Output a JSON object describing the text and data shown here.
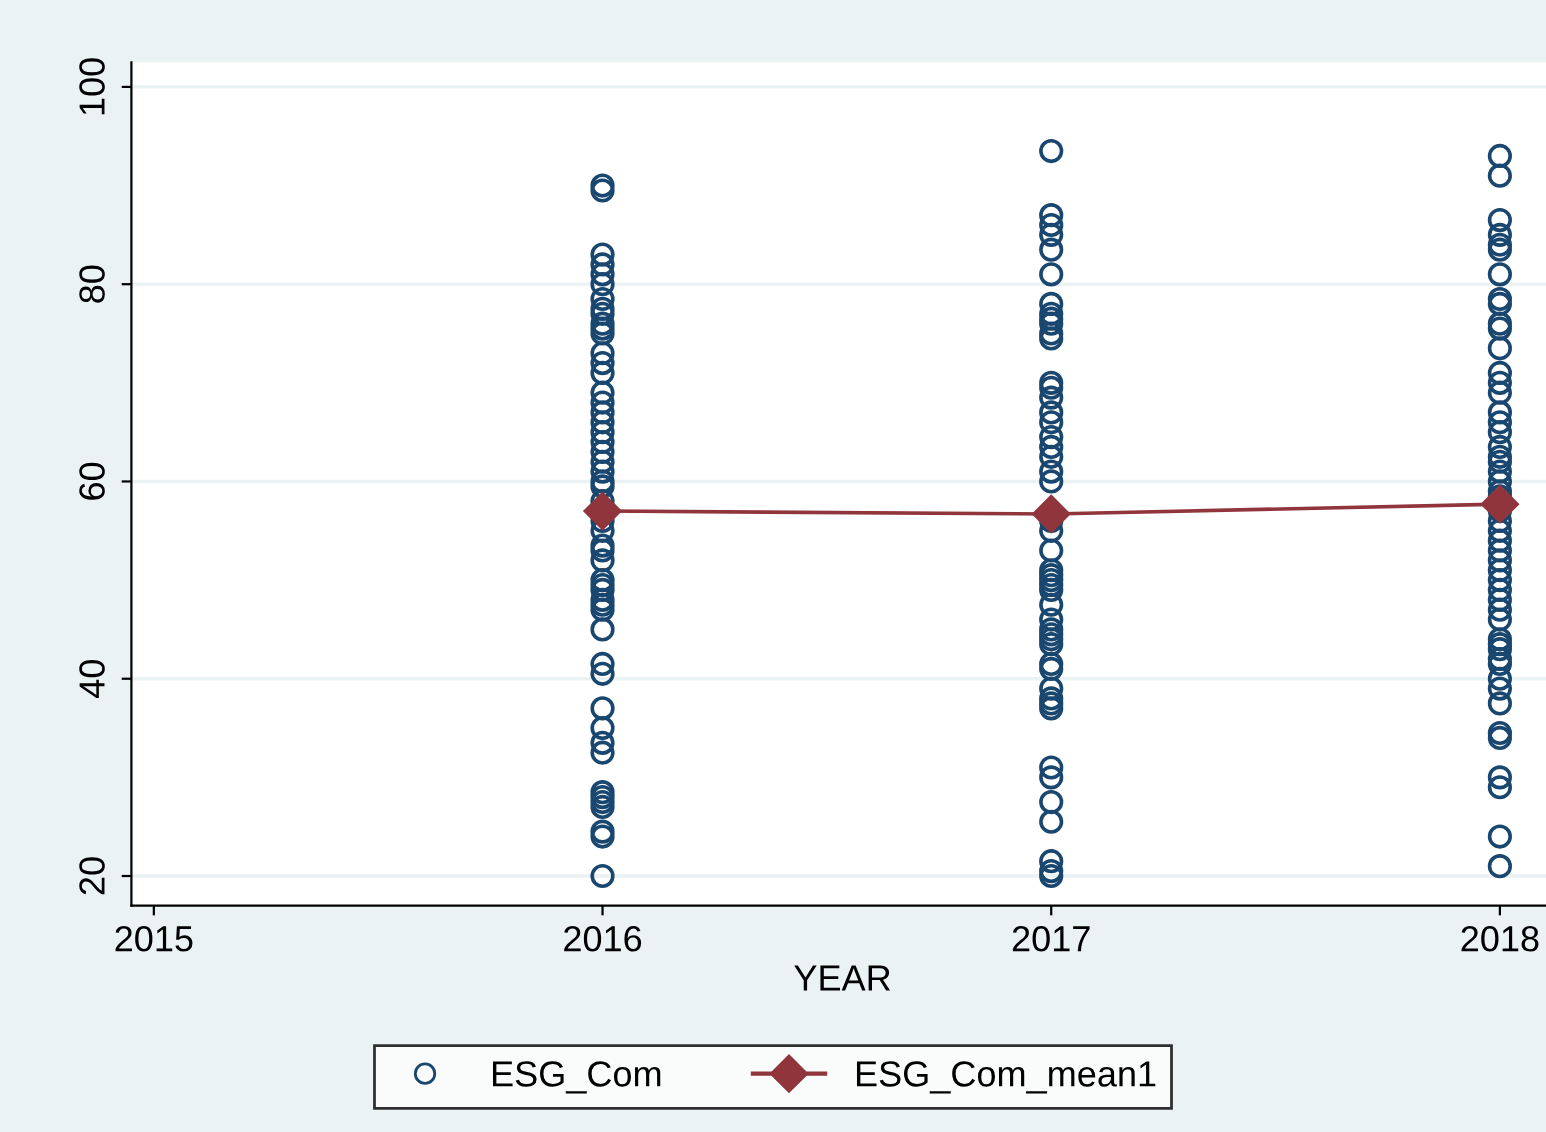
{
  "chart_data": {
    "type": "scatter",
    "xlabel": "YEAR",
    "xlim": [
      2014.95,
      2018.12
    ],
    "xticks": [
      2015,
      2016,
      2017,
      2018
    ],
    "ylim": [
      17,
      102.5
    ],
    "yticks": [
      20,
      40,
      60,
      80,
      100
    ],
    "grid": "y",
    "legend": "bottom",
    "series": [
      {
        "name": "ESG_Com",
        "marker": "circle",
        "color": "#1a476f",
        "x": [
          2016,
          2016,
          2016,
          2016,
          2016,
          2016,
          2016,
          2016,
          2016,
          2016,
          2016,
          2016,
          2016,
          2016,
          2016,
          2016,
          2016,
          2016,
          2016,
          2016,
          2016,
          2016,
          2016,
          2016,
          2016,
          2016,
          2016,
          2016,
          2016,
          2016,
          2016,
          2016,
          2016,
          2016,
          2016,
          2016,
          2016,
          2016,
          2016,
          2016,
          2016,
          2016,
          2016,
          2016,
          2016,
          2016,
          2016,
          2016,
          2016,
          2016,
          2016,
          2016,
          2017,
          2017,
          2017,
          2017,
          2017,
          2017,
          2017,
          2017,
          2017,
          2017,
          2017,
          2017,
          2017,
          2017,
          2017,
          2017,
          2017,
          2017,
          2017,
          2017,
          2017,
          2017,
          2017,
          2017,
          2017,
          2017,
          2017,
          2017,
          2017,
          2017,
          2017,
          2017,
          2017,
          2017,
          2017,
          2017,
          2017,
          2017,
          2017,
          2017,
          2017,
          2017,
          2017,
          2017,
          2017,
          2017,
          2017,
          2017,
          2017,
          2018,
          2018,
          2018,
          2018,
          2018,
          2018,
          2018,
          2018,
          2018,
          2018,
          2018,
          2018,
          2018,
          2018,
          2018,
          2018,
          2018,
          2018,
          2018,
          2018,
          2018,
          2018,
          2018,
          2018,
          2018,
          2018,
          2018,
          2018,
          2018,
          2018,
          2018,
          2018,
          2018,
          2018,
          2018,
          2018,
          2018,
          2018,
          2018,
          2018,
          2018,
          2018,
          2018,
          2018,
          2018,
          2018,
          2018,
          2018,
          2018,
          2018,
          2018
        ],
        "values": [
          90,
          89.5,
          83,
          82,
          81,
          80,
          78.5,
          77.5,
          77,
          76,
          75.5,
          75,
          73,
          72,
          71,
          69,
          68,
          67,
          66,
          65,
          64,
          63,
          62,
          61,
          60,
          59.5,
          58,
          56,
          55,
          53.5,
          53,
          52,
          50,
          49.5,
          49,
          48,
          47.5,
          47,
          45,
          41.5,
          40.5,
          37,
          35,
          33.5,
          32.5,
          28.5,
          28,
          27.5,
          27,
          24.5,
          24,
          20,
          93.5,
          87,
          86,
          85,
          83.5,
          81,
          78,
          77,
          76.5,
          76,
          75,
          74.5,
          70,
          69.5,
          68.5,
          67,
          66,
          64.5,
          63.5,
          62.5,
          61,
          60,
          56,
          55,
          53,
          51,
          50.5,
          50,
          49.5,
          49,
          47.5,
          46,
          45,
          44.5,
          44,
          43.5,
          41.5,
          41,
          39,
          38,
          37.5,
          37,
          31,
          30,
          27.5,
          25.5,
          21.5,
          20.5,
          20,
          93,
          91,
          86.5,
          85,
          84,
          83.5,
          81,
          78.5,
          78,
          76,
          75.5,
          73.5,
          71,
          70,
          69,
          67,
          66,
          65,
          63.5,
          62.5,
          62,
          61,
          60,
          59,
          58.5,
          57,
          56,
          55,
          54,
          53,
          52,
          51,
          50,
          49,
          48,
          47,
          46,
          44,
          43.5,
          43,
          42,
          41.5,
          40,
          39,
          37.5,
          34.5,
          34,
          30,
          29,
          24,
          21
        ]
      },
      {
        "name": "ESG_Com_mean1",
        "type": "line",
        "marker": "diamond",
        "color": "#90353b",
        "x": [
          2016,
          2017,
          2018
        ],
        "values": [
          57,
          56.7,
          57.7
        ]
      }
    ]
  }
}
